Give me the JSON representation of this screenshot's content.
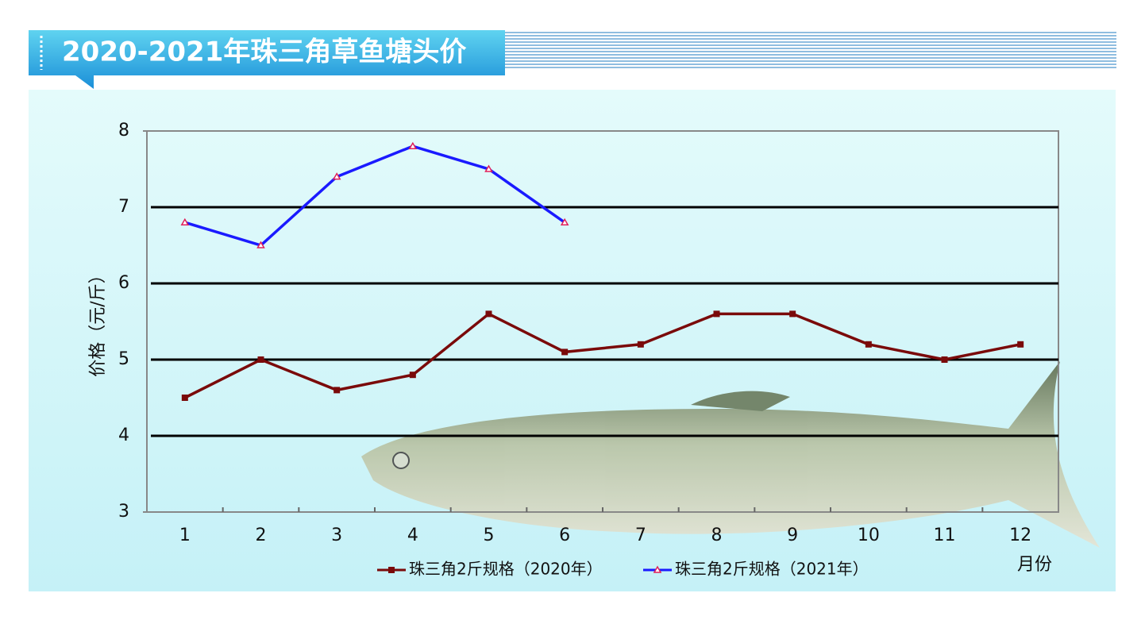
{
  "chart_data": {
    "type": "line",
    "title": "2020-2021年珠三角草鱼塘头价",
    "y_label": "价格（元/斤）",
    "x_label": "月份",
    "categories": [
      1,
      2,
      3,
      4,
      5,
      6,
      7,
      8,
      9,
      10,
      11,
      12
    ],
    "series": [
      {
        "name": "珠三角2斤规格（2020年）",
        "color": "#7a0a0a",
        "marker": "square",
        "values": [
          4.5,
          5.0,
          4.6,
          4.8,
          5.6,
          5.1,
          5.2,
          5.6,
          5.6,
          5.2,
          5.0,
          5.2
        ]
      },
      {
        "name": "珠三角2斤规格（2021年）",
        "color": "#1a1aff",
        "marker": "triangle",
        "values": [
          6.8,
          6.5,
          7.4,
          7.8,
          7.5,
          6.8,
          null,
          null,
          null,
          null,
          null,
          null
        ]
      }
    ],
    "ylim": [
      3,
      8
    ],
    "yticks": [
      3,
      4,
      5,
      6,
      7,
      8
    ],
    "grid": true
  }
}
